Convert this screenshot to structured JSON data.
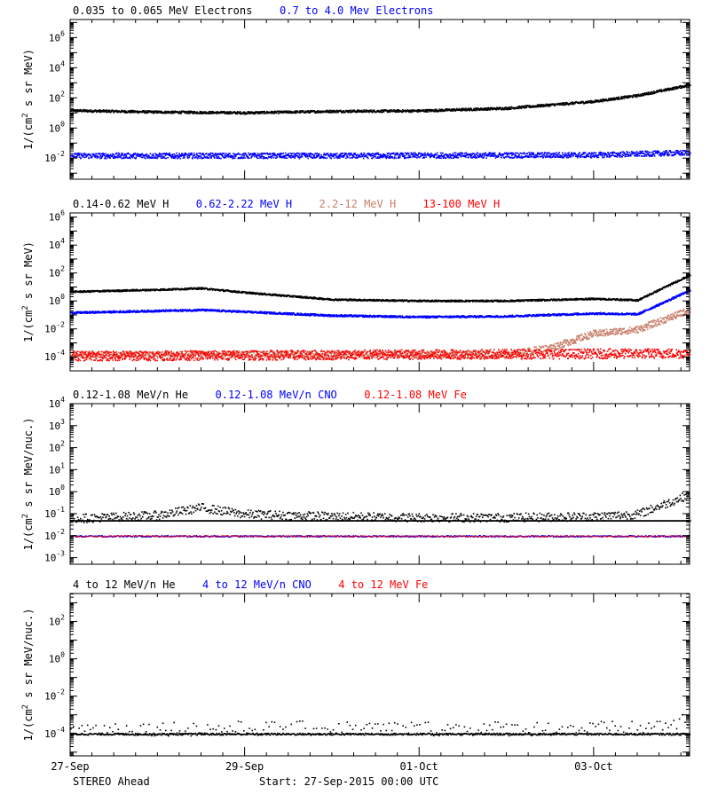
{
  "footer": {
    "spacecraft": "STEREO Ahead",
    "start": "Start: 27-Sep-2015 00:00 UTC"
  },
  "x_axis": {
    "range_days": [
      0,
      7.1
    ],
    "ticks": [
      {
        "day": 0,
        "label": "27-Sep"
      },
      {
        "day": 2,
        "label": "29-Sep"
      },
      {
        "day": 4,
        "label": "01-Oct"
      },
      {
        "day": 6,
        "label": "03-Oct"
      }
    ],
    "minor_step_days": 0.25
  },
  "chart_data": [
    {
      "type": "scatter",
      "ylabel_base": "1/(cm",
      "ylabel_sup": "2",
      "ylabel_rest": " s sr MeV)",
      "y_log": true,
      "ylim_exp": [
        -3.4,
        7.2
      ],
      "y_ticks_exp": [
        -2,
        0,
        2,
        4,
        6
      ],
      "legend": [
        {
          "label": "0.035 to 0.065 MeV Electrons",
          "color": "#000000"
        },
        {
          "label": "0.7 to 4.0 Mev Electrons",
          "color": "#0000ff"
        }
      ],
      "series": [
        {
          "color": "#000000",
          "noise": 0.08,
          "sparse": 1,
          "points": [
            [
              0,
              1.2
            ],
            [
              1,
              1.1
            ],
            [
              2,
              1.05
            ],
            [
              3,
              1.15
            ],
            [
              4,
              1.18
            ],
            [
              5,
              1.35
            ],
            [
              6,
              1.8
            ],
            [
              6.5,
              2.2
            ],
            [
              7.1,
              2.9
            ]
          ]
        },
        {
          "color": "#0000ff",
          "noise": 0.18,
          "sparse": 1,
          "points": [
            [
              0,
              -1.8
            ],
            [
              3,
              -1.8
            ],
            [
              6,
              -1.75
            ],
            [
              7.1,
              -1.6
            ]
          ]
        }
      ]
    },
    {
      "type": "scatter",
      "ylabel_base": "1/(cm",
      "ylabel_sup": "2",
      "ylabel_rest": " s sr MeV)",
      "y_log": true,
      "ylim_exp": [
        -5.0,
        6.3
      ],
      "y_ticks_exp": [
        -4,
        -2,
        0,
        2,
        4,
        6
      ],
      "legend": [
        {
          "label": "0.14-0.62 MeV H",
          "color": "#000000"
        },
        {
          "label": "0.62-2.22 MeV H",
          "color": "#0000ff"
        },
        {
          "label": "2.2-12 MeV H",
          "color": "#c87f6a"
        },
        {
          "label": "13-100 MeV H",
          "color": "#ff0000"
        }
      ],
      "series": [
        {
          "color": "#000000",
          "noise": 0.06,
          "sparse": 1,
          "points": [
            [
              0,
              0.7
            ],
            [
              1,
              0.85
            ],
            [
              1.5,
              0.95
            ],
            [
              2,
              0.65
            ],
            [
              3,
              0.15
            ],
            [
              4,
              0.05
            ],
            [
              5,
              0.05
            ],
            [
              6,
              0.2
            ],
            [
              6.5,
              0.1
            ],
            [
              7.1,
              1.9
            ]
          ]
        },
        {
          "color": "#0000ff",
          "noise": 0.07,
          "sparse": 1,
          "points": [
            [
              0,
              -0.8
            ],
            [
              1.5,
              -0.6
            ],
            [
              3,
              -1.0
            ],
            [
              4,
              -1.1
            ],
            [
              5,
              -1.05
            ],
            [
              6,
              -0.85
            ],
            [
              6.5,
              -0.9
            ],
            [
              7.1,
              0.8
            ]
          ]
        },
        {
          "color": "#c87f6a",
          "noise": 0.25,
          "sparse": 1,
          "points": [
            [
              0,
              -3.8
            ],
            [
              5,
              -3.8
            ],
            [
              5.5,
              -3.3
            ],
            [
              6,
              -2.3
            ],
            [
              6.5,
              -2.0
            ],
            [
              7.1,
              -0.6
            ]
          ]
        },
        {
          "color": "#ff0000",
          "noise": 0.35,
          "sparse": 1,
          "points": [
            [
              0,
              -3.9
            ],
            [
              7.1,
              -3.7
            ]
          ]
        }
      ]
    },
    {
      "type": "scatter",
      "ylabel_base": "1/(cm",
      "ylabel_sup": "2",
      "ylabel_rest": " s sr MeV/nuc.)",
      "y_log": true,
      "ylim_exp": [
        -3.3,
        4.0
      ],
      "y_ticks_exp": [
        -3,
        -2,
        -1,
        0,
        1,
        2,
        3,
        4
      ],
      "legend": [
        {
          "label": "0.12-1.08 MeV/n He",
          "color": "#000000"
        },
        {
          "label": "0.12-1.08 MeV/n CNO",
          "color": "#0000ff"
        },
        {
          "label": "0.12-1.08 MeV Fe",
          "color": "#ff0000"
        }
      ],
      "series": [
        {
          "color": "#000000",
          "noise": 0.2,
          "sparse": 2,
          "points": [
            [
              0,
              -1.2
            ],
            [
              1,
              -1.05
            ],
            [
              1.5,
              -0.7
            ],
            [
              2,
              -1.0
            ],
            [
              3,
              -1.1
            ],
            [
              4,
              -1.15
            ],
            [
              5,
              -1.15
            ],
            [
              6,
              -1.1
            ],
            [
              6.5,
              -1.0
            ],
            [
              7.1,
              -0.1
            ]
          ]
        },
        {
          "color": "#000000",
          "noise": 0.0,
          "sparse": 1,
          "points": [
            [
              0,
              -1.3
            ],
            [
              7.1,
              -1.3
            ]
          ]
        },
        {
          "color": "#0000ff",
          "noise": 0.03,
          "sparse": 3,
          "points": [
            [
              0,
              -2.0
            ],
            [
              7.1,
              -2.0
            ]
          ]
        },
        {
          "color": "#ff0000",
          "noise": 0.03,
          "sparse": 6,
          "points": [
            [
              0,
              -2.0
            ],
            [
              7.1,
              -2.0
            ]
          ]
        }
      ]
    },
    {
      "type": "scatter",
      "ylabel_base": "1/(cm",
      "ylabel_sup": "2",
      "ylabel_rest": " s sr MeV/nuc.)",
      "y_log": true,
      "ylim_exp": [
        -5.2,
        3.5
      ],
      "y_ticks_exp": [
        -4,
        -2,
        0,
        2
      ],
      "legend": [
        {
          "label": "4 to 12 MeV/n He",
          "color": "#000000"
        },
        {
          "label": "4 to 12 MeV/n CNO",
          "color": "#0000ff"
        },
        {
          "label": "4 to 12 MeV Fe",
          "color": "#ff0000"
        }
      ],
      "series": [
        {
          "color": "#000000",
          "noise": 0.05,
          "sparse": 2,
          "points": [
            [
              0,
              -4.0
            ],
            [
              6,
              -4.0
            ],
            [
              7.1,
              -4.0
            ]
          ]
        },
        {
          "color": "#000000",
          "noise": 0.4,
          "sparse": 8,
          "points": [
            [
              6.5,
              -3.7
            ],
            [
              7.1,
              -3.3
            ]
          ]
        }
      ]
    }
  ]
}
